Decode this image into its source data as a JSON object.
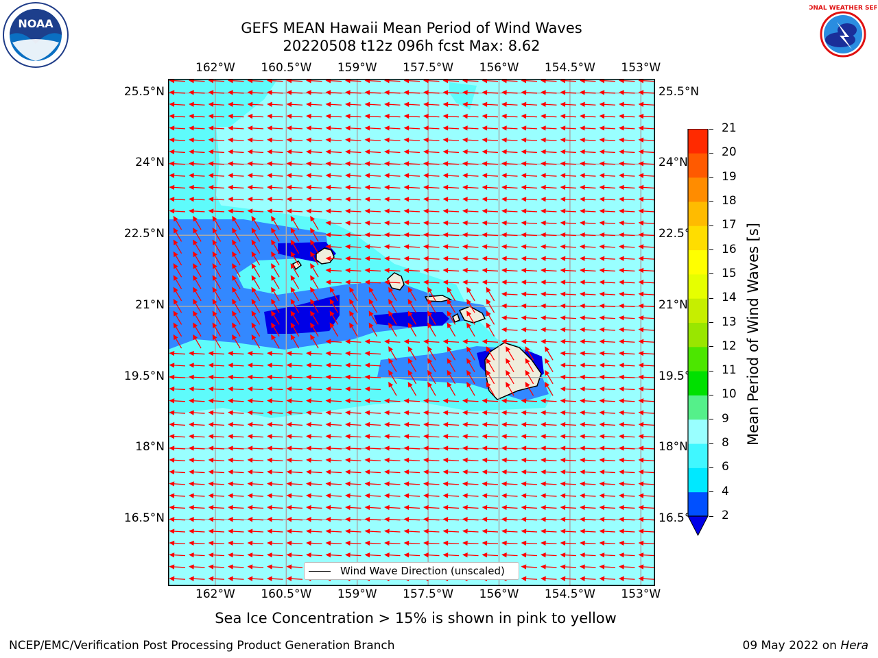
{
  "title": {
    "line1": "GEFS MEAN Hawaii Mean Period of Wind Waves",
    "line2": "20220508 t12z 096h fcst   Max: 8.62"
  },
  "logos": {
    "noaa": {
      "icon": "noaa-logo",
      "text": "NOAA"
    },
    "nws": {
      "icon": "nws-logo",
      "text": "NATIONAL WEATHER SERVICE"
    }
  },
  "map": {
    "lon_labels": [
      "162°W",
      "160.5°W",
      "159°W",
      "157.5°W",
      "156°W",
      "154.5°W",
      "153°W"
    ],
    "lat_labels": [
      "25.5°N",
      "24°N",
      "22.5°N",
      "21°N",
      "19.5°N",
      "18°N",
      "16.5°N"
    ],
    "lon_values": [
      -162,
      -160.5,
      -159,
      -157.5,
      -156,
      -154.5,
      -153
    ],
    "lat_values": [
      25.5,
      24,
      22.5,
      21,
      19.5,
      18,
      16.5
    ],
    "extent": {
      "lon": [
        -163,
        -152.7
      ],
      "lat": [
        15.1,
        25.8
      ]
    },
    "vector_direction": "toward west",
    "legend": "Wind Wave Direction (unscaled)",
    "colors": {
      "ocean_base": "#99ffff",
      "deep_blue": "#0000e6",
      "mid_blue": "#3388ff",
      "light_cyan": "#5efbfb",
      "land": "#efeddc",
      "arrow": "#ff0000",
      "grid": "#aaaaaa"
    }
  },
  "colorbar": {
    "label": "Mean Period of Wind Waves [s]",
    "ticks": [
      "2",
      "4",
      "6",
      "8",
      "9",
      "10",
      "11",
      "12",
      "13",
      "14",
      "15",
      "16",
      "17",
      "18",
      "19",
      "20",
      "21"
    ],
    "colors": [
      "#0050ff",
      "#00e8ff",
      "#40f7ff",
      "#99ffff",
      "#55f08a",
      "#00e000",
      "#4ce600",
      "#99e600",
      "#c6ee00",
      "#e6ff00",
      "#ffff00",
      "#ffdd00",
      "#ffbb00",
      "#ff8c00",
      "#ff5a00",
      "#ff2a00"
    ],
    "under_color": "#0000e6"
  },
  "note": "Sea Ice Concentration > 15% is shown in pink to yellow",
  "footer": {
    "left": "NCEP/EMC/Verification Post Processing Product Generation Branch",
    "right_date": "09 May 2022 on ",
    "right_host": "Hera"
  }
}
